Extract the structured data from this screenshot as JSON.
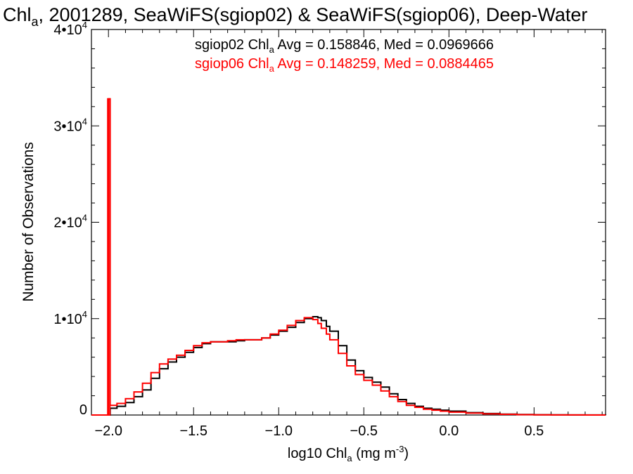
{
  "chart_data": {
    "type": "line",
    "title": {
      "prefix": "Chl",
      "sub": "a",
      "rest": ", 2001289, SeaWiFS(sgiop02) & SeaWiFS(sgiop06), Deep-Water"
    },
    "xlabel": {
      "prefix": "log10 Chl",
      "sub": "a",
      "mid": " (mg m",
      "sup": "-3",
      "end": ")"
    },
    "ylabel": "Number of Observations",
    "xlim": [
      -2.1,
      0.92
    ],
    "ylim": [
      0,
      40000
    ],
    "x_ticks": [
      {
        "value": -2.0,
        "label": "-2.0"
      },
      {
        "value": -1.5,
        "label": "-1.5"
      },
      {
        "value": -1.0,
        "label": "-1.0"
      },
      {
        "value": -0.5,
        "label": "-0.5"
      },
      {
        "value": 0.0,
        "label": "0.0"
      },
      {
        "value": 0.5,
        "label": "0.5"
      }
    ],
    "y_ticks": [
      {
        "value": 0,
        "base": "0",
        "exp": ""
      },
      {
        "value": 10000,
        "base": "1•10",
        "exp": "4"
      },
      {
        "value": 20000,
        "base": "2•10",
        "exp": "4"
      },
      {
        "value": 30000,
        "base": "3•10",
        "exp": "4"
      },
      {
        "value": 40000,
        "base": "4•10",
        "exp": "4"
      }
    ],
    "annotations": [
      {
        "series": "sgiop02",
        "color": "#000000",
        "pre": "sgiop02 Chl",
        "sub": "a",
        "post": " Avg = 0.158846, Med = 0.0969666"
      },
      {
        "series": "sgiop06",
        "color": "#ff0000",
        "pre": "sgiop06 Chl",
        "sub": "a",
        "post": " Avg = 0.148259, Med = 0.0884465"
      }
    ],
    "series": [
      {
        "name": "sgiop02",
        "color": "#000000",
        "x": [
          -2.1,
          -2.0,
          -1.99,
          -1.95,
          -1.9,
          -1.85,
          -1.8,
          -1.75,
          -1.7,
          -1.65,
          -1.6,
          -1.55,
          -1.5,
          -1.45,
          -1.4,
          -1.35,
          -1.3,
          -1.25,
          -1.2,
          -1.15,
          -1.1,
          -1.05,
          -1.0,
          -0.95,
          -0.9,
          -0.85,
          -0.8,
          -0.77,
          -0.75,
          -0.72,
          -0.7,
          -0.65,
          -0.6,
          -0.55,
          -0.5,
          -0.45,
          -0.4,
          -0.35,
          -0.3,
          -0.25,
          -0.2,
          -0.15,
          -0.1,
          -0.05,
          0.0,
          0.1,
          0.2,
          0.3,
          0.4,
          0.5,
          0.6,
          0.7,
          0.8,
          0.92
        ],
        "y": [
          0,
          0,
          700,
          900,
          1300,
          1900,
          2600,
          3800,
          4800,
          5500,
          6000,
          6500,
          7000,
          7400,
          7600,
          7600,
          7600,
          7700,
          7800,
          7800,
          8000,
          8300,
          8700,
          9100,
          9600,
          10000,
          10200,
          10100,
          9800,
          9200,
          8700,
          7200,
          5700,
          4600,
          3900,
          3400,
          2900,
          2200,
          1600,
          1200,
          900,
          700,
          600,
          500,
          400,
          250,
          150,
          90,
          50,
          30,
          15,
          8,
          4,
          0
        ]
      },
      {
        "name": "sgiop06",
        "color": "#ff0000",
        "x": [
          -2.1,
          -2.0,
          -1.99,
          -1.95,
          -1.9,
          -1.85,
          -1.8,
          -1.75,
          -1.7,
          -1.65,
          -1.6,
          -1.55,
          -1.5,
          -1.45,
          -1.4,
          -1.35,
          -1.3,
          -1.25,
          -1.2,
          -1.15,
          -1.1,
          -1.05,
          -1.0,
          -0.95,
          -0.9,
          -0.85,
          -0.8,
          -0.77,
          -0.75,
          -0.72,
          -0.7,
          -0.65,
          -0.6,
          -0.55,
          -0.5,
          -0.45,
          -0.4,
          -0.35,
          -0.3,
          -0.25,
          -0.2,
          -0.15,
          -0.1,
          -0.05,
          0.0,
          0.1,
          0.2,
          0.3,
          0.4,
          0.5,
          0.6,
          0.7,
          0.8,
          0.92
        ],
        "y": [
          0,
          32800,
          1000,
          1200,
          1700,
          2400,
          3300,
          4400,
          5300,
          5800,
          6200,
          6700,
          7200,
          7500,
          7600,
          7600,
          7700,
          7800,
          7800,
          7800,
          8000,
          8400,
          8800,
          9300,
          9800,
          10100,
          9900,
          9500,
          9000,
          8400,
          7800,
          6400,
          5100,
          4200,
          3600,
          3100,
          2500,
          1900,
          1400,
          1000,
          800,
          600,
          500,
          400,
          300,
          200,
          120,
          70,
          40,
          20,
          10,
          5,
          2,
          0
        ]
      }
    ]
  }
}
